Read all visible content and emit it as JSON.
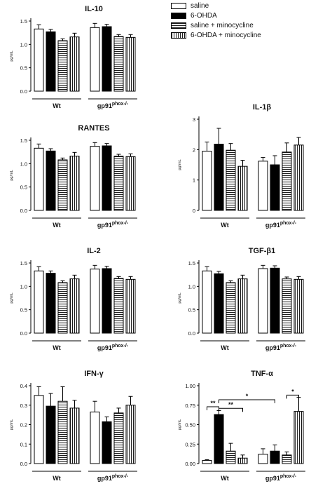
{
  "legend": {
    "items": [
      {
        "label": "saline",
        "pattern": "open"
      },
      {
        "label": "6-OHDA",
        "pattern": "solid"
      },
      {
        "label": "saline + minocycline",
        "pattern": "hstripe"
      },
      {
        "label": "6-OHDA + minocycline",
        "pattern": "vstripe"
      }
    ]
  },
  "groups": {
    "wt": "Wt",
    "gp_base": "gp91",
    "gp_sup": "phox-/-"
  },
  "y_unit": "pg/mL",
  "colors": {
    "bar_stroke": "#000000",
    "solid_fill": "#000000",
    "open_fill": "#ffffff"
  },
  "chart_data": [
    {
      "type": "bar",
      "title": "IL-10",
      "ylabel": "pg/mL",
      "ylim": [
        0,
        1.5
      ],
      "yticks": [
        "0.0",
        "0.5",
        "1.0",
        "1.5"
      ],
      "groups": [
        "Wt",
        "gp91phox-/-"
      ],
      "values": [
        1.33,
        1.27,
        1.08,
        1.16,
        1.36,
        1.38,
        1.17,
        1.15
      ],
      "errors": [
        0.09,
        0.05,
        0.04,
        0.08,
        0.09,
        0.05,
        0.04,
        0.06
      ]
    },
    {
      "type": "bar",
      "title": "RANTES",
      "ylabel": "pg/mL",
      "ylim": [
        0,
        1.5
      ],
      "yticks": [
        "0.0",
        "0.5",
        "1.0",
        "1.5"
      ],
      "groups": [
        "Wt",
        "gp91phox-/-"
      ],
      "values": [
        1.33,
        1.27,
        1.08,
        1.16,
        1.37,
        1.38,
        1.16,
        1.15
      ],
      "errors": [
        0.09,
        0.05,
        0.04,
        0.08,
        0.08,
        0.05,
        0.04,
        0.06
      ]
    },
    {
      "type": "bar",
      "title": "IL-1β",
      "ylabel": "pg/mL",
      "ylim": [
        0,
        3
      ],
      "yticks": [
        "0",
        "1",
        "2",
        "3"
      ],
      "groups": [
        "Wt",
        "gp91phox-/-"
      ],
      "values": [
        1.95,
        2.18,
        1.98,
        1.45,
        1.62,
        1.5,
        1.92,
        2.15
      ],
      "errors": [
        0.3,
        0.52,
        0.22,
        0.2,
        0.12,
        0.3,
        0.3,
        0.25
      ]
    },
    {
      "type": "bar",
      "title": "IL-2",
      "ylabel": "pg/mL",
      "ylim": [
        0,
        1.5
      ],
      "yticks": [
        "0.0",
        "0.5",
        "1.0",
        "1.5"
      ],
      "groups": [
        "Wt",
        "gp91phox-/-"
      ],
      "values": [
        1.33,
        1.28,
        1.08,
        1.16,
        1.37,
        1.38,
        1.17,
        1.15
      ],
      "errors": [
        0.09,
        0.05,
        0.04,
        0.08,
        0.08,
        0.05,
        0.04,
        0.06
      ]
    },
    {
      "type": "bar",
      "title": "TGF-β1",
      "ylabel": "pg/mL",
      "ylim": [
        0,
        1.5
      ],
      "yticks": [
        "0.0",
        "0.5",
        "1.0",
        "1.5"
      ],
      "groups": [
        "Wt",
        "gp91phox-/-"
      ],
      "values": [
        1.33,
        1.27,
        1.08,
        1.16,
        1.38,
        1.39,
        1.16,
        1.15
      ],
      "errors": [
        0.09,
        0.05,
        0.04,
        0.08,
        0.07,
        0.05,
        0.04,
        0.06
      ]
    },
    {
      "type": "bar",
      "title": "IFN-γ",
      "ylabel": "pg/mL",
      "ylim": [
        0,
        0.4
      ],
      "yticks": [
        "0.0",
        "0.1",
        "0.2",
        "0.3",
        "0.4"
      ],
      "groups": [
        "Wt",
        "gp91phox-/-"
      ],
      "values": [
        0.35,
        0.295,
        0.32,
        0.285,
        0.265,
        0.215,
        0.26,
        0.3
      ],
      "errors": [
        0.045,
        0.065,
        0.075,
        0.04,
        0.055,
        0.025,
        0.025,
        0.045
      ]
    },
    {
      "type": "bar",
      "title": "TNF-α",
      "ylabel": "pg/mL",
      "ylim": [
        0,
        1.0
      ],
      "yticks": [
        "0.00",
        "0.25",
        "0.50",
        "0.75",
        "1.00"
      ],
      "groups": [
        "Wt",
        "gp91phox-/-"
      ],
      "values": [
        0.04,
        0.63,
        0.16,
        0.07,
        0.12,
        0.16,
        0.11,
        0.67
      ],
      "errors": [
        0.01,
        0.05,
        0.1,
        0.04,
        0.07,
        0.08,
        0.04,
        0.18
      ],
      "annotations": [
        {
          "text": "**",
          "from_bar": 1,
          "to_bar": 2,
          "y": 0.73
        },
        {
          "text": "**",
          "from_bar": 2,
          "to_bar": 4,
          "y": 0.71
        },
        {
          "text": "*",
          "from_bar": 2,
          "to_bar": 6,
          "y": 0.82
        },
        {
          "text": "*",
          "from_bar": 7,
          "to_bar": 8,
          "y": 0.88
        }
      ]
    }
  ]
}
